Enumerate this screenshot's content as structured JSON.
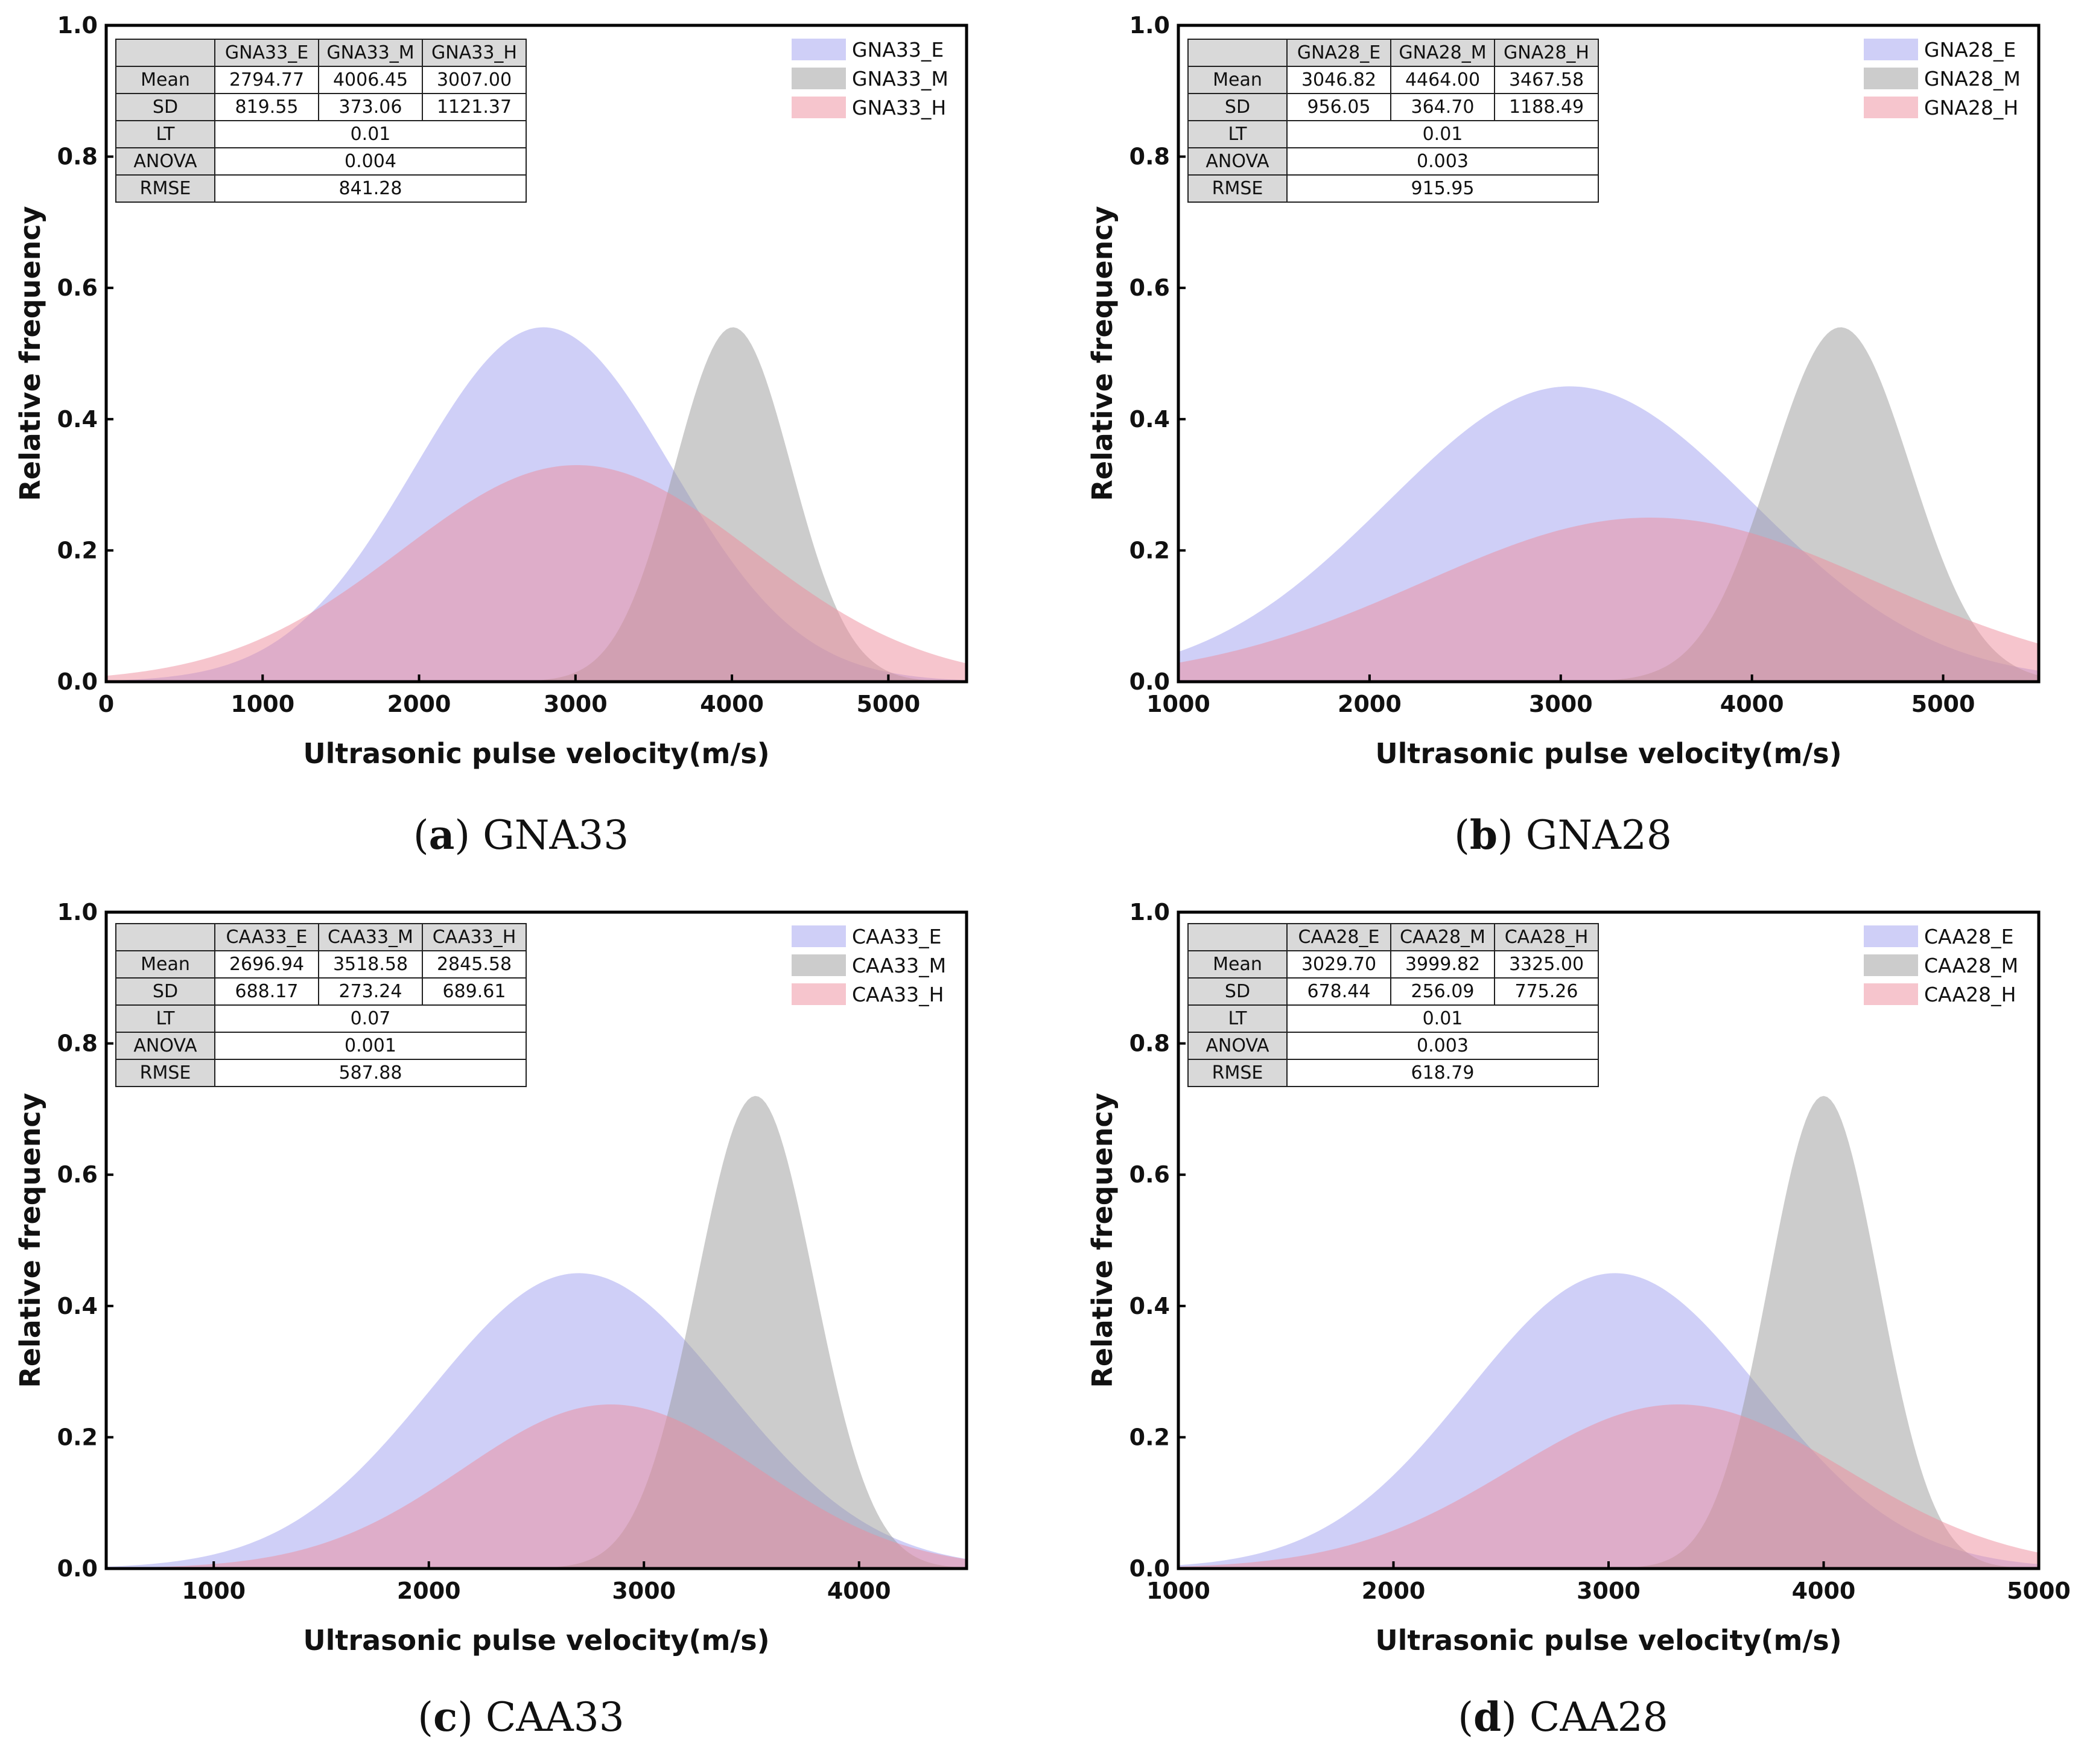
{
  "colors": {
    "E": "#9f9fef",
    "M": "#999999",
    "H": "#ee8c9c"
  },
  "stat_labels": [
    "Mean",
    "SD",
    "LT",
    "ANOVA",
    "RMSE"
  ],
  "chart_data": [
    {
      "type": "area",
      "caption_letter": "a",
      "caption_name": "GNA33",
      "xlabel": "Ultrasonic pulse velocity(m/s)",
      "ylabel": "Relative frequency",
      "xlim": [
        0,
        5500
      ],
      "ylim": [
        0,
        1.0
      ],
      "xticks": [
        "0",
        "1000",
        "2000",
        "3000",
        "4000",
        "5000"
      ],
      "xtick_values": [
        0,
        1000,
        2000,
        3000,
        4000,
        5000
      ],
      "yticks": [
        "0.0",
        "0.2",
        "0.4",
        "0.6",
        "0.8",
        "1.0"
      ],
      "ytick_values": [
        0,
        0.2,
        0.4,
        0.6,
        0.8,
        1.0
      ],
      "legend_position": "top-right",
      "series": [
        {
          "name": "GNA33_E",
          "key": "E",
          "mean": 2794.77,
          "sd": 819.55,
          "peak": 0.54
        },
        {
          "name": "GNA33_M",
          "key": "M",
          "mean": 4006.45,
          "sd": 373.06,
          "peak": 0.54
        },
        {
          "name": "GNA33_H",
          "key": "H",
          "mean": 3007.0,
          "sd": 1121.37,
          "peak": 0.33
        }
      ],
      "table": {
        "headers": [
          "GNA33_E",
          "GNA33_M",
          "GNA33_H"
        ],
        "mean": [
          "2794.77",
          "4006.45",
          "3007.00"
        ],
        "sd": [
          "819.55",
          "373.06",
          "1121.37"
        ],
        "lt": "0.01",
        "anova": "0.004",
        "rmse": "841.28"
      }
    },
    {
      "type": "area",
      "caption_letter": "b",
      "caption_name": "GNA28",
      "xlabel": "Ultrasonic pulse velocity(m/s)",
      "ylabel": "Relative frequency",
      "xlim": [
        1000,
        5500
      ],
      "ylim": [
        0,
        1.0
      ],
      "xticks": [
        "1000",
        "2000",
        "3000",
        "4000",
        "5000"
      ],
      "xtick_values": [
        1000,
        2000,
        3000,
        4000,
        5000
      ],
      "yticks": [
        "0.0",
        "0.2",
        "0.4",
        "0.6",
        "0.8",
        "1.0"
      ],
      "ytick_values": [
        0,
        0.2,
        0.4,
        0.6,
        0.8,
        1.0
      ],
      "legend_position": "top-right",
      "series": [
        {
          "name": "GNA28_E",
          "key": "E",
          "mean": 3046.82,
          "sd": 956.05,
          "peak": 0.45
        },
        {
          "name": "GNA28_M",
          "key": "M",
          "mean": 4464.0,
          "sd": 364.7,
          "peak": 0.54
        },
        {
          "name": "GNA28_H",
          "key": "H",
          "mean": 3467.58,
          "sd": 1188.49,
          "peak": 0.25
        }
      ],
      "table": {
        "headers": [
          "GNA28_E",
          "GNA28_M",
          "GNA28_H"
        ],
        "mean": [
          "3046.82",
          "4464.00",
          "3467.58"
        ],
        "sd": [
          "956.05",
          "364.70",
          "1188.49"
        ],
        "lt": "0.01",
        "anova": "0.003",
        "rmse": "915.95"
      }
    },
    {
      "type": "area",
      "caption_letter": "c",
      "caption_name": "CAA33",
      "xlabel": "Ultrasonic pulse velocity(m/s)",
      "ylabel": "Relative frequency",
      "xlim": [
        500,
        4500
      ],
      "ylim": [
        0,
        1.0
      ],
      "xticks": [
        "1000",
        "2000",
        "3000",
        "4000"
      ],
      "xtick_values": [
        1000,
        2000,
        3000,
        4000
      ],
      "yticks": [
        "0.0",
        "0.2",
        "0.4",
        "0.6",
        "0.8",
        "1.0"
      ],
      "ytick_values": [
        0,
        0.2,
        0.4,
        0.6,
        0.8,
        1.0
      ],
      "legend_position": "top-right",
      "series": [
        {
          "name": "CAA33_E",
          "key": "E",
          "mean": 2696.94,
          "sd": 688.17,
          "peak": 0.45
        },
        {
          "name": "CAA33_M",
          "key": "M",
          "mean": 3518.58,
          "sd": 273.24,
          "peak": 0.72
        },
        {
          "name": "CAA33_H",
          "key": "H",
          "mean": 2845.58,
          "sd": 689.61,
          "peak": 0.25
        }
      ],
      "table": {
        "headers": [
          "CAA33_E",
          "CAA33_M",
          "CAA33_H"
        ],
        "mean": [
          "2696.94",
          "3518.58",
          "2845.58"
        ],
        "sd": [
          "688.17",
          "273.24",
          "689.61"
        ],
        "lt": "0.07",
        "anova": "0.001",
        "rmse": "587.88"
      }
    },
    {
      "type": "area",
      "caption_letter": "d",
      "caption_name": "CAA28",
      "xlabel": "Ultrasonic pulse velocity(m/s)",
      "ylabel": "Relative frequency",
      "xlim": [
        1000,
        5000
      ],
      "ylim": [
        0,
        1.0
      ],
      "xticks": [
        "1000",
        "2000",
        "3000",
        "4000",
        "5000"
      ],
      "xtick_values": [
        1000,
        2000,
        3000,
        4000,
        5000
      ],
      "yticks": [
        "0.0",
        "0.2",
        "0.4",
        "0.6",
        "0.8",
        "1.0"
      ],
      "ytick_values": [
        0,
        0.2,
        0.4,
        0.6,
        0.8,
        1.0
      ],
      "legend_position": "top-right",
      "series": [
        {
          "name": "CAA28_E",
          "key": "E",
          "mean": 3029.7,
          "sd": 678.44,
          "peak": 0.45
        },
        {
          "name": "CAA28_M",
          "key": "M",
          "mean": 3999.82,
          "sd": 256.09,
          "peak": 0.72
        },
        {
          "name": "CAA28_H",
          "key": "H",
          "mean": 3325.0,
          "sd": 775.26,
          "peak": 0.25
        }
      ],
      "table": {
        "headers": [
          "CAA28_E",
          "CAA28_M",
          "CAA28_H"
        ],
        "mean": [
          "3029.70",
          "3999.82",
          "3325.00"
        ],
        "sd": [
          "678.44",
          "256.09",
          "775.26"
        ],
        "lt": "0.01",
        "anova": "0.003",
        "rmse": "618.79"
      }
    }
  ]
}
